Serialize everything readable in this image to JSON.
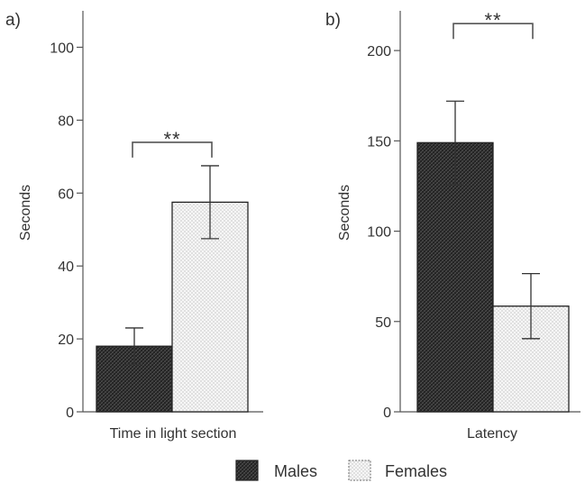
{
  "chart_data": [
    {
      "type": "bar",
      "panel_label": "a)",
      "categories": [
        "Time in light section"
      ],
      "ylabel": "Seconds",
      "ylim": [
        0,
        110
      ],
      "yticks": [
        0,
        20,
        40,
        60,
        80,
        100
      ],
      "series": [
        {
          "name": "Males",
          "values": [
            18
          ],
          "error": [
            5
          ]
        },
        {
          "name": "Females",
          "values": [
            57.5
          ],
          "error": [
            10
          ]
        }
      ],
      "significance": "**",
      "grid": false
    },
    {
      "type": "bar",
      "panel_label": "b)",
      "categories": [
        "Latency"
      ],
      "ylabel": "Seconds",
      "ylim": [
        0,
        222
      ],
      "yticks": [
        0,
        50,
        100,
        150,
        200
      ],
      "series": [
        {
          "name": "Males",
          "values": [
            149
          ],
          "error": [
            23
          ]
        },
        {
          "name": "Females",
          "values": [
            58.5
          ],
          "error": [
            18
          ]
        }
      ],
      "significance": "**",
      "grid": false
    }
  ],
  "legend": {
    "placement": "bottom-center",
    "items": [
      {
        "label": "Males",
        "pattern": "dark-crosshatch"
      },
      {
        "label": "Females",
        "pattern": "light-dotted"
      }
    ]
  },
  "colors": {
    "males_fill": "#2b2b2b",
    "females_fill": "#f6f6f6",
    "axis": "#555555",
    "text": "#333333"
  }
}
